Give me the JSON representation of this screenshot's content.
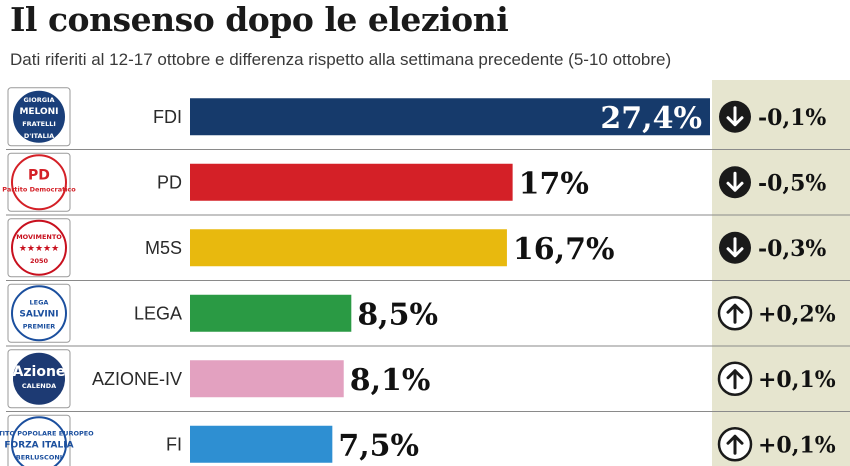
{
  "title": "Il consenso dopo le elezioni",
  "subtitle": "Dati riferiti al 12-17 ottobre e differenza rispetto alla settimana precedente (5-10 ottobre)",
  "colors": {
    "diff_column_bg": "#e6e5cf",
    "down_icon_bg": "#1a1a1a",
    "up_icon_stroke": "#1a1a1a"
  },
  "chart_data": {
    "type": "bar",
    "orientation": "horizontal",
    "categories": [
      "FDI",
      "PD",
      "M5S",
      "LEGA",
      "AZIONE-IV",
      "FI"
    ],
    "values": [
      27.4,
      17,
      16.7,
      8.5,
      8.1,
      7.5
    ],
    "value_labels": [
      "27,4%",
      "17%",
      "16,7%",
      "8,5%",
      "8,1%",
      "7,5%"
    ],
    "bar_colors": [
      "#163a6b",
      "#d42027",
      "#e8b90e",
      "#2a9a44",
      "#e3a1c0",
      "#2e8fd2"
    ],
    "differences": [
      -0.1,
      -0.5,
      -0.3,
      0.2,
      0.1,
      0.1
    ],
    "difference_labels": [
      "-0,1%",
      "-0,5%",
      "-0,3%",
      "+0,2%",
      "+0,1%",
      "+0,1%"
    ],
    "difference_icons": [
      "arrow-down-icon",
      "arrow-down-icon",
      "arrow-down-icon",
      "arrow-up-icon",
      "arrow-up-icon",
      "arrow-up-icon"
    ],
    "xlim": [
      0,
      27.4
    ],
    "grid": false,
    "legend": "none",
    "title": "Il consenso dopo le elezioni",
    "xlabel": "",
    "ylabel": ""
  },
  "logos": [
    {
      "name": "fdi-logo",
      "icon": "fdi-logo",
      "lines": [
        "GIORGIA",
        "MELONI",
        "FRATELLI",
        "D'ITALIA"
      ],
      "bg": "#1a3f7a",
      "fg": "#ffffff"
    },
    {
      "name": "pd-logo",
      "icon": "pd-logo",
      "lines": [
        "PD",
        "Partito Democratico"
      ],
      "bg": "#ffffff",
      "fg": "#d42027"
    },
    {
      "name": "m5s-logo",
      "icon": "m5s-logo",
      "lines": [
        "MOVIMENTO",
        "★★★★★",
        "2050"
      ],
      "bg": "#ffffff",
      "fg": "#c8101e"
    },
    {
      "name": "lega-logo",
      "icon": "lega-logo",
      "lines": [
        "LEGA",
        "SALVINI",
        "PREMIER"
      ],
      "bg": "#ffffff",
      "fg": "#1b4f9e"
    },
    {
      "name": "azione-logo",
      "icon": "azione-logo",
      "lines": [
        "Azione",
        "CALENDA"
      ],
      "bg": "#1d3a73",
      "fg": "#ffffff"
    },
    {
      "name": "fi-logo",
      "icon": "fi-logo",
      "lines": [
        "PARTITO POPOLARE EUROPEO",
        "FORZA ITALIA",
        "BERLUSCONI"
      ],
      "bg": "#ffffff",
      "fg": "#1b4f9e"
    }
  ]
}
